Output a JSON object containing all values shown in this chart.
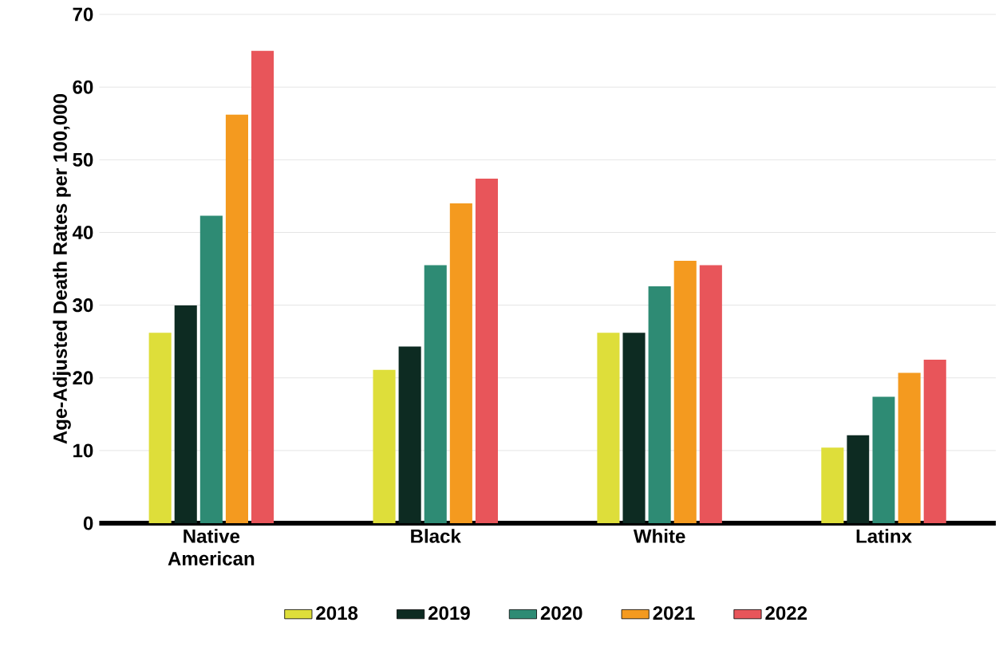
{
  "chart_data": {
    "type": "bar",
    "ylabel": "Age-Adjusted Death Rates per 100,000",
    "categories": [
      "Native American",
      "Black",
      "White",
      "Latinx"
    ],
    "series": [
      {
        "name": "2018",
        "color": "#dede3a",
        "values": [
          26.2,
          21.1,
          26.2,
          10.4
        ]
      },
      {
        "name": "2019",
        "color": "#0d2b22",
        "values": [
          30,
          24.3,
          26.2,
          12.1
        ]
      },
      {
        "name": "2020",
        "color": "#2e8b74",
        "values": [
          42.3,
          35.5,
          32.6,
          17.4
        ]
      },
      {
        "name": "2021",
        "color": "#f49a1f",
        "values": [
          56.2,
          44,
          36.1,
          20.7
        ]
      },
      {
        "name": "2022",
        "color": "#e8555a",
        "values": [
          65,
          47.4,
          35.5,
          22.5
        ]
      }
    ],
    "ylim": [
      0,
      70
    ],
    "yticks": [
      0,
      10,
      20,
      30,
      40,
      50,
      60,
      70
    ],
    "grid": "y",
    "legend": "bottom"
  }
}
